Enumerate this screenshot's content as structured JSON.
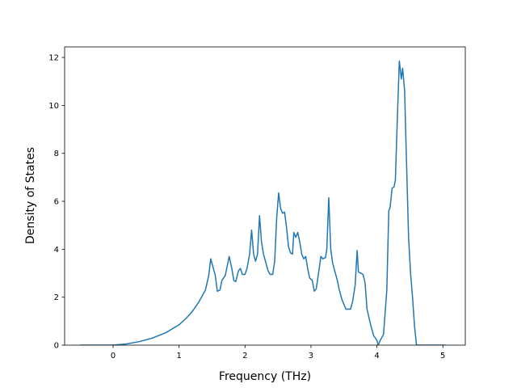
{
  "chart_data": {
    "type": "line",
    "x_label": "Frequency (THz)",
    "y_label": "Density of States",
    "x": [
      -0.5,
      -0.25,
      0,
      0.2,
      0.4,
      0.6,
      0.8,
      1.0,
      1.1,
      1.2,
      1.3,
      1.4,
      1.45,
      1.48,
      1.52,
      1.55,
      1.58,
      1.62,
      1.65,
      1.7,
      1.73,
      1.76,
      1.8,
      1.83,
      1.86,
      1.9,
      1.93,
      1.96,
      2.0,
      2.03,
      2.07,
      2.1,
      2.13,
      2.16,
      2.19,
      2.22,
      2.25,
      2.28,
      2.32,
      2.35,
      2.38,
      2.42,
      2.45,
      2.48,
      2.51,
      2.54,
      2.57,
      2.6,
      2.63,
      2.66,
      2.69,
      2.72,
      2.74,
      2.77,
      2.8,
      2.83,
      2.86,
      2.89,
      2.92,
      2.95,
      2.98,
      3.02,
      3.05,
      3.08,
      3.12,
      3.15,
      3.18,
      3.22,
      3.24,
      3.27,
      3.3,
      3.33,
      3.37,
      3.4,
      3.43,
      3.47,
      3.5,
      3.53,
      3.57,
      3.6,
      3.63,
      3.67,
      3.7,
      3.72,
      3.76,
      3.79,
      3.82,
      3.85,
      3.9,
      3.95,
      4.0,
      4.02,
      4.05,
      4.1,
      4.15,
      4.18,
      4.2,
      4.23,
      4.26,
      4.28,
      4.31,
      4.34,
      4.37,
      4.39,
      4.42,
      4.45,
      4.48,
      4.51,
      4.54,
      4.57,
      4.6,
      4.7,
      5.05
    ],
    "series": [
      {
        "color": "#1f77b4",
        "values": [
          0,
          0,
          0,
          0.05,
          0.15,
          0.3,
          0.52,
          0.85,
          1.1,
          1.4,
          1.8,
          2.3,
          2.9,
          3.6,
          3.2,
          2.9,
          2.25,
          2.3,
          2.7,
          2.9,
          3.3,
          3.7,
          3.2,
          2.7,
          2.65,
          3.1,
          3.2,
          2.95,
          2.95,
          3.2,
          3.8,
          4.8,
          3.8,
          3.5,
          3.8,
          5.4,
          4.3,
          3.8,
          3.4,
          3.1,
          2.95,
          2.95,
          3.5,
          5.3,
          6.35,
          5.7,
          5.5,
          5.55,
          4.9,
          4.1,
          3.85,
          3.8,
          4.7,
          4.5,
          4.7,
          4.3,
          3.8,
          3.6,
          3.7,
          3.2,
          2.8,
          2.7,
          2.25,
          2.35,
          3.1,
          3.7,
          3.6,
          3.65,
          4.0,
          6.15,
          4.0,
          3.4,
          3.0,
          2.7,
          2.3,
          1.9,
          1.7,
          1.5,
          1.5,
          1.5,
          1.8,
          2.5,
          3.95,
          3.05,
          3.0,
          2.95,
          2.6,
          1.5,
          0.9,
          0.4,
          0.2,
          0,
          0.2,
          0.45,
          2.3,
          5.6,
          5.75,
          6.55,
          6.6,
          6.9,
          9.5,
          11.85,
          11.1,
          11.55,
          10.6,
          7.5,
          4.5,
          3.0,
          2.0,
          0.8,
          0,
          0,
          0
        ]
      }
    ],
    "xlim": [
      -0.735,
      5.34
    ],
    "ylim": [
      0,
      12.44
    ],
    "xticks": [
      0,
      1,
      2,
      3,
      4,
      5
    ],
    "yticks": [
      0,
      2,
      4,
      6,
      8,
      10,
      12
    ]
  }
}
